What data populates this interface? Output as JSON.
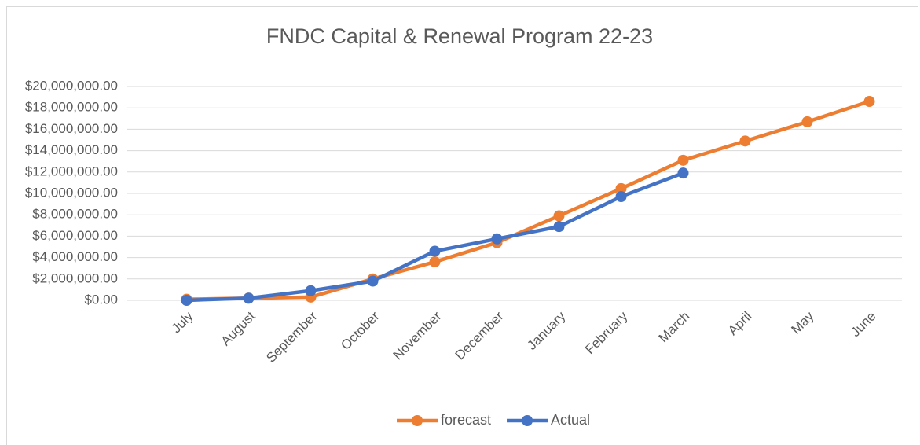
{
  "chart_data": {
    "type": "line",
    "title": "FNDC Capital & Renewal Program 22-23",
    "categories": [
      "July",
      "August",
      "September",
      "October",
      "November",
      "December",
      "January",
      "February",
      "March",
      "April",
      "May",
      "June"
    ],
    "series": [
      {
        "name": "forecast",
        "color": "#ed7d31",
        "values": [
          100000,
          200000,
          300000,
          2000000,
          3600000,
          5400000,
          7900000,
          10450000,
          13100000,
          14900000,
          16700000,
          18600000
        ]
      },
      {
        "name": "Actual",
        "color": "#4472c4",
        "values": [
          0,
          200000,
          900000,
          1800000,
          4600000,
          5750000,
          6900000,
          9700000,
          11900000,
          null,
          null,
          null
        ]
      }
    ],
    "ylim": [
      0,
      20000000
    ],
    "yticks": [
      {
        "value": 0,
        "label": "$0.00"
      },
      {
        "value": 2000000,
        "label": "$2,000,000.00"
      },
      {
        "value": 4000000,
        "label": "$4,000,000.00"
      },
      {
        "value": 6000000,
        "label": "$6,000,000.00"
      },
      {
        "value": 8000000,
        "label": "$8,000,000.00"
      },
      {
        "value": 10000000,
        "label": "$10,000,000.00"
      },
      {
        "value": 12000000,
        "label": "$12,000,000.00"
      },
      {
        "value": 14000000,
        "label": "$14,000,000.00"
      },
      {
        "value": 16000000,
        "label": "$16,000,000.00"
      },
      {
        "value": 18000000,
        "label": "$18,000,000.00"
      },
      {
        "value": 20000000,
        "label": "$20,000,000.00"
      }
    ],
    "grid": true,
    "legend": "bottom"
  }
}
